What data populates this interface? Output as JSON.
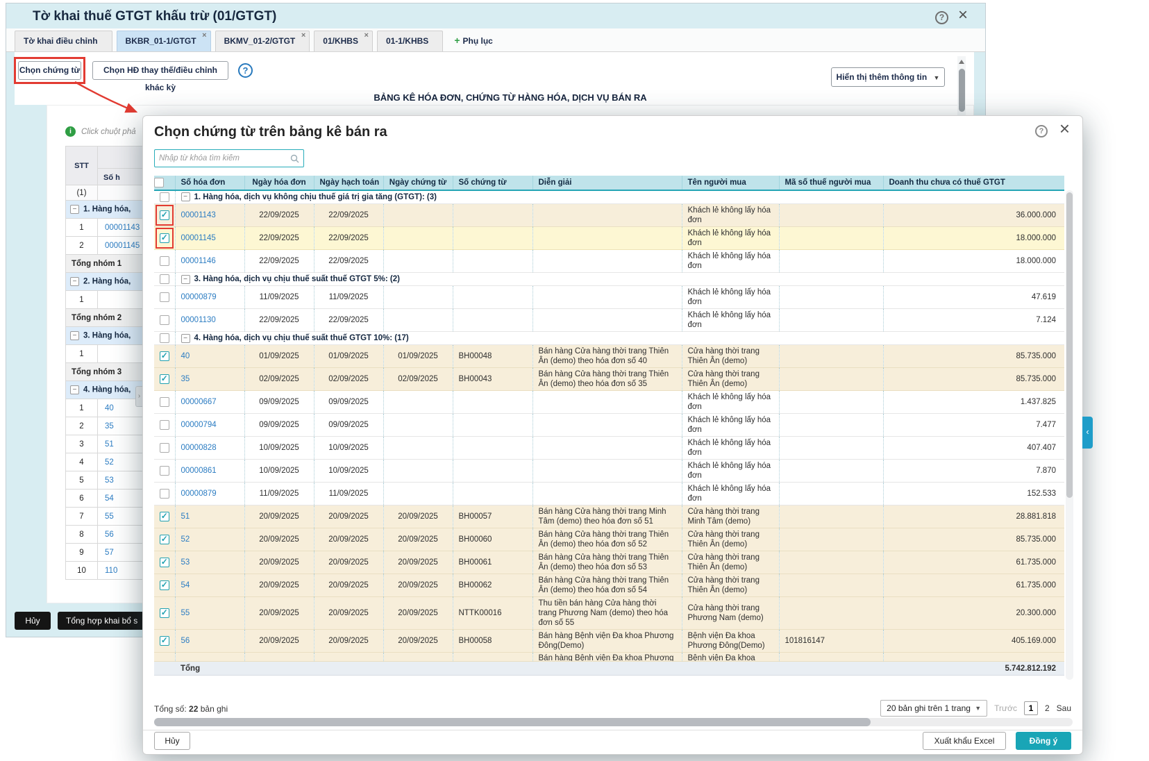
{
  "window": {
    "title": "Tờ khai thuế GTGT khấu trừ (01/GTGT)",
    "tabs": [
      {
        "label": "Tờ khai điều chỉnh"
      },
      {
        "label": "BKBR_01-1/GTGT",
        "closable": true,
        "active": true
      },
      {
        "label": "BKMV_01-2/GTGT",
        "closable": true
      },
      {
        "label": "01/KHBS",
        "closable": true
      },
      {
        "label": "01-1/KHBS"
      },
      {
        "label": "Phụ lục",
        "add": true
      }
    ],
    "toolbar": {
      "select_documents": "Chọn chứng từ",
      "select_invoice_other_period": "Chọn HĐ thay thế/điều chỉnh khác kỳ",
      "show_more_info": "Hiển thị thêm thông tin"
    },
    "document_heading": "BẢNG KÊ HÓA ĐƠN, CHỨNG TỪ HÀNG HÓA, DỊCH VỤ BÁN RA",
    "info_hint": "Click chuột phả",
    "left_table": {
      "col_stt": "STT",
      "col_invoice": "Số h",
      "index_row": "(1)",
      "rows": [
        {
          "t": "group",
          "label": "1. Hàng hóa,"
        },
        {
          "t": "row",
          "stt": "1",
          "inv": "00001143"
        },
        {
          "t": "row",
          "stt": "2",
          "inv": "00001145"
        },
        {
          "t": "total",
          "label": "Tổng nhóm 1"
        },
        {
          "t": "group",
          "label": "2. Hàng hóa,"
        },
        {
          "t": "row",
          "stt": "1",
          "inv": ""
        },
        {
          "t": "total",
          "label": "Tổng nhóm 2"
        },
        {
          "t": "group",
          "label": "3. Hàng hóa,"
        },
        {
          "t": "row",
          "stt": "1",
          "inv": ""
        },
        {
          "t": "total",
          "label": "Tổng nhóm 3"
        },
        {
          "t": "group",
          "label": "4. Hàng hóa,"
        },
        {
          "t": "row",
          "stt": "1",
          "inv": "40"
        },
        {
          "t": "row",
          "stt": "2",
          "inv": "35"
        },
        {
          "t": "row",
          "stt": "3",
          "inv": "51"
        },
        {
          "t": "row",
          "stt": "4",
          "inv": "52"
        },
        {
          "t": "row",
          "stt": "5",
          "inv": "53"
        },
        {
          "t": "row",
          "stt": "6",
          "inv": "54"
        },
        {
          "t": "row",
          "stt": "7",
          "inv": "55"
        },
        {
          "t": "row",
          "stt": "8",
          "inv": "56"
        },
        {
          "t": "row",
          "stt": "9",
          "inv": "57"
        },
        {
          "t": "row",
          "stt": "10",
          "inv": "110"
        }
      ]
    },
    "footer": {
      "cancel": "Hủy",
      "aggregate": "Tổng hợp khai bổ s"
    }
  },
  "modal": {
    "title": "Chọn chứng từ trên bảng kê bán ra",
    "search_placeholder": "Nhập từ khóa tìm kiếm",
    "table": {
      "columns": [
        "Số hóa đơn",
        "Ngày hóa đơn",
        "Ngày hạch toán",
        "Ngày chứng từ",
        "Số chứng từ",
        "Diễn giải",
        "Tên người mua",
        "Mã số thuế người mua",
        "Doanh thu chưa có thuế GTGT"
      ],
      "groups": [
        {
          "label": "1. Hàng hóa, dịch vụ không chịu thuế giá trị gia tăng (GTGT): (3)",
          "rows": [
            {
              "inv": "00001143",
              "d1": "22/09/2025",
              "d2": "22/09/2025",
              "d3": "",
              "doc": "",
              "desc": "",
              "buyer": "Khách lẻ không lấy hóa đơn",
              "tax": "",
              "amount": "36.000.000",
              "checked": true,
              "ring": true,
              "hl": "cream"
            },
            {
              "inv": "00001145",
              "d1": "22/09/2025",
              "d2": "22/09/2025",
              "d3": "",
              "doc": "",
              "desc": "",
              "buyer": "Khách lẻ không lấy hóa đơn",
              "tax": "",
              "amount": "18.000.000",
              "checked": true,
              "ring": true,
              "hl": "yellow"
            },
            {
              "inv": "00001146",
              "d1": "22/09/2025",
              "d2": "22/09/2025",
              "d3": "",
              "doc": "",
              "desc": "",
              "buyer": "Khách lẻ không lấy hóa đơn",
              "tax": "",
              "amount": "18.000.000"
            }
          ]
        },
        {
          "label": "3. Hàng hóa, dịch vụ chịu thuế suất thuế GTGT 5%: (2)",
          "rows": [
            {
              "inv": "00000879",
              "d1": "11/09/2025",
              "d2": "11/09/2025",
              "d3": "",
              "doc": "",
              "desc": "",
              "buyer": "Khách lẻ không lấy hóa đơn",
              "tax": "",
              "amount": "47.619"
            },
            {
              "inv": "00001130",
              "d1": "22/09/2025",
              "d2": "22/09/2025",
              "d3": "",
              "doc": "",
              "desc": "",
              "buyer": "Khách lẻ không lấy hóa đơn",
              "tax": "",
              "amount": "7.124"
            }
          ]
        },
        {
          "label": "4. Hàng hóa, dịch vụ chịu thuế suất thuế GTGT 10%: (17)",
          "rows": [
            {
              "inv": "40",
              "d1": "01/09/2025",
              "d2": "01/09/2025",
              "d3": "01/09/2025",
              "doc": "BH00048",
              "desc": "Bán hàng Cửa hàng thời trang Thiên Ân (demo) theo hóa đơn số 40",
              "buyer": "Cửa hàng thời trang Thiên Ân (demo)",
              "tax": "",
              "amount": "85.735.000",
              "checked": true,
              "hl": "cream"
            },
            {
              "inv": "35",
              "d1": "02/09/2025",
              "d2": "02/09/2025",
              "d3": "02/09/2025",
              "doc": "BH00043",
              "desc": "Bán hàng Cửa hàng thời trang Thiên Ân (demo) theo hóa đơn số 35",
              "buyer": "Cửa hàng thời trang Thiên Ân (demo)",
              "tax": "",
              "amount": "85.735.000",
              "checked": true,
              "hl": "cream"
            },
            {
              "inv": "00000667",
              "d1": "09/09/2025",
              "d2": "09/09/2025",
              "d3": "",
              "doc": "",
              "desc": "",
              "buyer": "Khách lẻ không lấy hóa đơn",
              "tax": "",
              "amount": "1.437.825"
            },
            {
              "inv": "00000794",
              "d1": "09/09/2025",
              "d2": "09/09/2025",
              "d3": "",
              "doc": "",
              "desc": "",
              "buyer": "Khách lẻ không lấy hóa đơn",
              "tax": "",
              "amount": "7.477"
            },
            {
              "inv": "00000828",
              "d1": "10/09/2025",
              "d2": "10/09/2025",
              "d3": "",
              "doc": "",
              "desc": "",
              "buyer": "Khách lẻ không lấy hóa đơn",
              "tax": "",
              "amount": "407.407"
            },
            {
              "inv": "00000861",
              "d1": "10/09/2025",
              "d2": "10/09/2025",
              "d3": "",
              "doc": "",
              "desc": "",
              "buyer": "Khách lẻ không lấy hóa đơn",
              "tax": "",
              "amount": "7.870"
            },
            {
              "inv": "00000879",
              "d1": "11/09/2025",
              "d2": "11/09/2025",
              "d3": "",
              "doc": "",
              "desc": "",
              "buyer": "Khách lẻ không lấy hóa đơn",
              "tax": "",
              "amount": "152.533"
            },
            {
              "inv": "51",
              "d1": "20/09/2025",
              "d2": "20/09/2025",
              "d3": "20/09/2025",
              "doc": "BH00057",
              "desc": "Bán hàng Cửa hàng thời trang Minh Tâm (demo) theo hóa đơn số 51",
              "buyer": "Cửa hàng thời trang Minh Tâm (demo)",
              "tax": "",
              "amount": "28.881.818",
              "checked": true,
              "hl": "cream"
            },
            {
              "inv": "52",
              "d1": "20/09/2025",
              "d2": "20/09/2025",
              "d3": "20/09/2025",
              "doc": "BH00060",
              "desc": "Bán hàng Cửa hàng thời trang Thiên Ân (demo) theo hóa đơn số 52",
              "buyer": "Cửa hàng thời trang Thiên Ân (demo)",
              "tax": "",
              "amount": "85.735.000",
              "checked": true,
              "hl": "cream"
            },
            {
              "inv": "53",
              "d1": "20/09/2025",
              "d2": "20/09/2025",
              "d3": "20/09/2025",
              "doc": "BH00061",
              "desc": "Bán hàng Cửa hàng thời trang Thiên Ân (demo) theo hóa đơn số 53",
              "buyer": "Cửa hàng thời trang Thiên Ân (demo)",
              "tax": "",
              "amount": "61.735.000",
              "checked": true,
              "hl": "cream"
            },
            {
              "inv": "54",
              "d1": "20/09/2025",
              "d2": "20/09/2025",
              "d3": "20/09/2025",
              "doc": "BH00062",
              "desc": "Bán hàng Cửa hàng thời trang Thiên Ân (demo) theo hóa đơn số 54",
              "buyer": "Cửa hàng thời trang Thiên Ân (demo)",
              "tax": "",
              "amount": "61.735.000",
              "checked": true,
              "hl": "cream"
            },
            {
              "inv": "55",
              "d1": "20/09/2025",
              "d2": "20/09/2025",
              "d3": "20/09/2025",
              "doc": "NTTK00016",
              "desc": "Thu tiền bán hàng Cửa hàng thời trang Phương Nam (demo) theo hóa đơn số 55",
              "buyer": "Cửa hàng thời trang Phương Nam (demo)",
              "tax": "",
              "amount": "20.300.000",
              "checked": true,
              "hl": "cream"
            },
            {
              "inv": "56",
              "d1": "20/09/2025",
              "d2": "20/09/2025",
              "d3": "20/09/2025",
              "doc": "BH00058",
              "desc": "Bán hàng Bệnh viện Đa khoa Phương Đông(Demo)",
              "buyer": "Bệnh viện Đa khoa Phương Đông(Demo)",
              "tax": "101816147",
              "amount": "405.169.000",
              "checked": true,
              "hl": "cream"
            },
            {
              "inv": "",
              "d1": "",
              "d2": "",
              "d3": "",
              "doc": "",
              "desc": "Bán hàng Bệnh viện Đa khoa Phương",
              "buyer": "Bệnh viện Đa khoa",
              "tax": "",
              "amount": "",
              "hl": "cream",
              "clip": true
            }
          ]
        }
      ],
      "total_label": "Tổng",
      "total_value": "5.742.812.192"
    },
    "records": {
      "label": "Tổng số:",
      "count": "22",
      "suffix": "bản ghi"
    },
    "pagination": {
      "page_size": "20 bản ghi trên 1 trang",
      "prev": "Trước",
      "pages": [
        "1",
        "2"
      ],
      "next": "Sau"
    },
    "buttons": {
      "cancel": "Hủy",
      "export": "Xuất khẩu Excel",
      "ok": "Đồng ý"
    }
  },
  "colors": {
    "accent": "#19a5b6",
    "selection_cream": "#f7eeda",
    "selection_yellow": "#fdf7d3",
    "highlight_red": "#e23b32",
    "link_blue": "#2b7cc2"
  }
}
